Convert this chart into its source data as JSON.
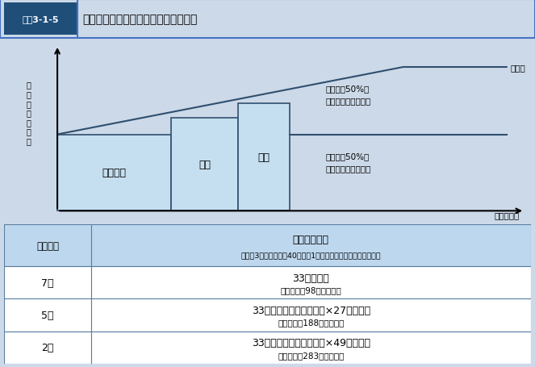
{
  "title_box_label": "図表3-1-5",
  "title_text": "国民健康保険料（税）の軽減の仕組み",
  "bg_color": "#ccd9e8",
  "chart_bg_color": "#d5e3ef",
  "table_header_bg": "#bdd7ee",
  "light_blue_fill": "#c5dff0",
  "ylabel_text": "保\n険\n料\n（\n税\n）\n額",
  "xlabel_text": "世帯の所得",
  "limit_label": "限度額",
  "ounou_label": "応能分（50%）\n（所得割・資産割）",
  "oueki_label": "応益分（50%）\n（均等割・世帯割）",
  "label_7": "７割軽減",
  "label_5": "５割",
  "label_2": "２割",
  "table_col1_header": "減額割合",
  "table_col2_header": "対象者の要件",
  "table_col2_subheader": "（例：3人世帯（夫婦40歳、子1人）夫の給与収入のみの場合）",
  "row1_col1": "7割",
  "row1_col2_line1": "33万円以下",
  "row1_col2_line2": "（給与収入98万円以下）",
  "row2_col1": "5割",
  "row2_col2_line1": "33万円＋（被保険者数）×27万円以下",
  "row2_col2_line2": "（給与収入188万円以下）",
  "row3_col1": "2割",
  "row3_col2_line1": "33万円＋（被保険者数）×49万円以下",
  "row3_col2_line2": "（給与収入283万円以下）"
}
